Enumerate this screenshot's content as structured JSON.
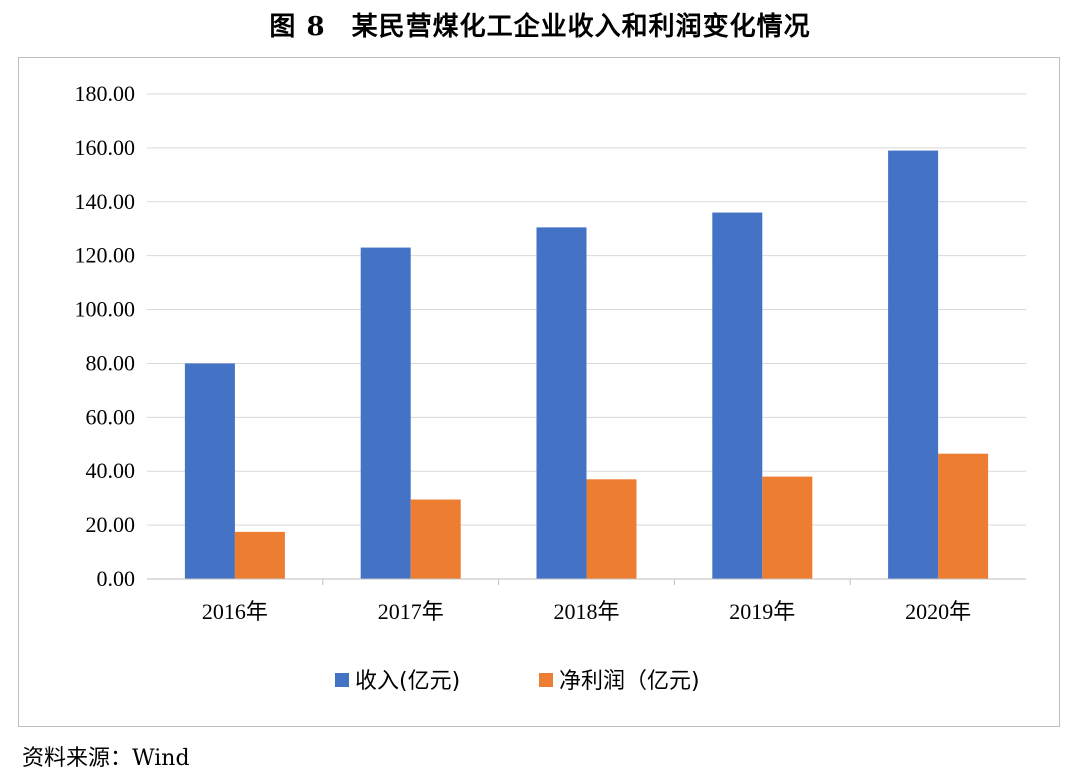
{
  "figure": {
    "label": "图 8",
    "title": "某民营煤化工企业收入和利润变化情况"
  },
  "source": {
    "label": "资料来源：",
    "value": "Wind"
  },
  "chart_data": {
    "type": "bar",
    "categories": [
      "2016年",
      "2017年",
      "2018年",
      "2019年",
      "2020年"
    ],
    "series": [
      {
        "name": "收入(亿元)",
        "color": "#4472c4",
        "values": [
          80,
          123,
          130.5,
          136,
          159
        ]
      },
      {
        "name": "净利润（亿元)",
        "color": "#ed7d31",
        "values": [
          17.5,
          29.5,
          37,
          38,
          46.5
        ]
      }
    ],
    "ylim": [
      0,
      180
    ],
    "ytick_step": 20,
    "ytick_labels": [
      "0.00",
      "20.00",
      "40.00",
      "60.00",
      "80.00",
      "100.00",
      "120.00",
      "140.00",
      "160.00",
      "180.00"
    ],
    "grid": true,
    "legend": "bottom-center"
  }
}
